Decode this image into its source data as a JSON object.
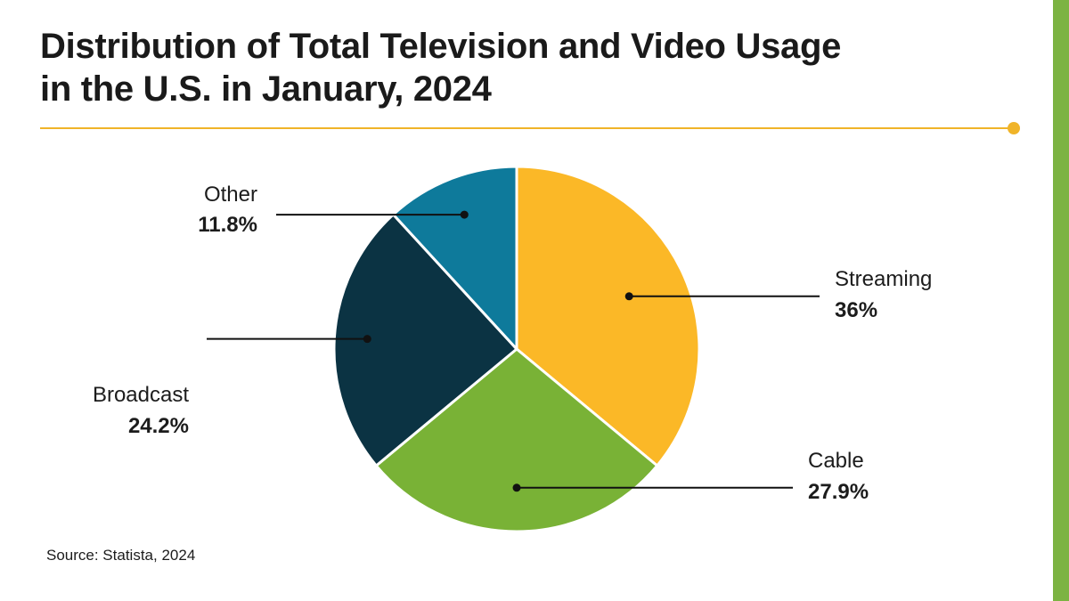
{
  "title_lines": [
    "Distribution of Total Television and Video Usage",
    "in the U.S. in January, 2024"
  ],
  "source": "Source: Statista, 2024",
  "colors": {
    "accent_line": "#f0b429",
    "side_bar": "#7cb342"
  },
  "chart_data": {
    "type": "pie",
    "title": "Distribution of Total Television and Video Usage in the U.S. in January, 2024",
    "start_angle_deg": 0,
    "direction": "clockwise",
    "slices": [
      {
        "label": "Streaming",
        "value": 36,
        "display": "36%",
        "color": "#fbb827"
      },
      {
        "label": "Cable",
        "value": 27.9,
        "display": "27.9%",
        "color": "#79b236"
      },
      {
        "label": "Broadcast",
        "value": 24.2,
        "display": "24.2%",
        "color": "#0b3343"
      },
      {
        "label": "Other",
        "value": 11.8,
        "display": "11.8%",
        "color": "#0e7a9b"
      }
    ]
  }
}
